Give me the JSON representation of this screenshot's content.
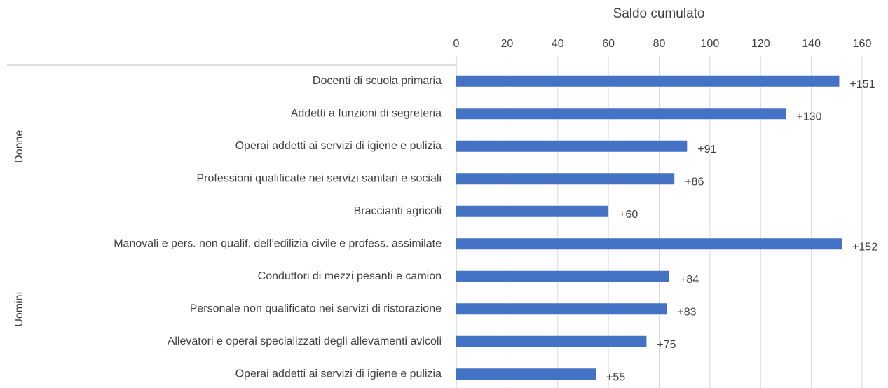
{
  "chart_data": {
    "type": "hbar",
    "title": "Saldo cumulato",
    "categories": [
      "Docenti di scuola primaria",
      "Addetti a funzioni di segreteria",
      "Operai addetti ai servizi di igiene e pulizia",
      "Professioni qualificate nei servizi sanitari e sociali",
      "Braccianti agricoli",
      "Manovali e pers. non qualif. dell’edilizia civile e profess. assimilate",
      "Conduttori di mezzi pesanti e camion",
      "Personale non qualificato nei servizi di ristorazione",
      "Allevatori e operai specializzati degli allevamenti avicoli",
      "Operai addetti ai servizi di igiene e pulizia"
    ],
    "groups": [
      "Donne",
      "Donne",
      "Donne",
      "Donne",
      "Donne",
      "Uomini",
      "Uomini",
      "Uomini",
      "Uomini",
      "Uomini"
    ],
    "values": [
      151,
      130,
      91,
      86,
      60,
      152,
      84,
      83,
      75,
      55
    ],
    "value_labels": [
      "+151",
      "+130",
      "+91",
      "+86",
      "+60",
      "+152",
      "+84",
      "+83",
      "+75",
      "+55"
    ],
    "color": "#4472c4",
    "xlim": [
      0,
      160
    ],
    "xticks": [
      0,
      20,
      40,
      60,
      80,
      100,
      120,
      140,
      160
    ],
    "grid": true
  }
}
